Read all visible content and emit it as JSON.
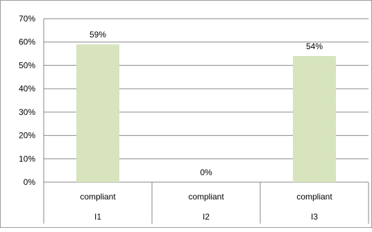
{
  "chart_data": {
    "type": "bar",
    "categories": [
      {
        "group": "I1",
        "label": "compliant"
      },
      {
        "group": "I2",
        "label": "compliant"
      },
      {
        "group": "I3",
        "label": "compliant"
      }
    ],
    "values": [
      59,
      0,
      54
    ],
    "data_labels": [
      "59%",
      "0%",
      "54%"
    ],
    "ylim": [
      0,
      70
    ],
    "yticks": [
      0,
      10,
      20,
      30,
      40,
      50,
      60,
      70
    ],
    "ytick_labels": [
      "0%",
      "10%",
      "20%",
      "30%",
      "40%",
      "50%",
      "60%",
      "70%"
    ],
    "grid": true,
    "legend": "none",
    "bar_color": "#d7e4bd",
    "grid_color": "#868686"
  }
}
